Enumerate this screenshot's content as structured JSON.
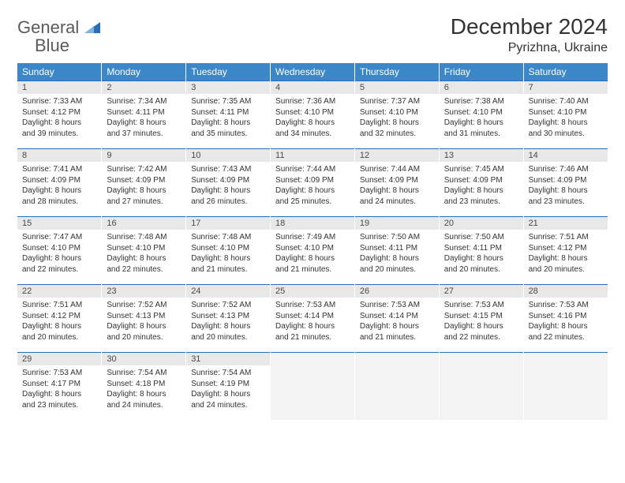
{
  "brand": {
    "name_gray": "General",
    "name_blue": "Blue"
  },
  "title": "December 2024",
  "location": "Pyrizhna, Ukraine",
  "colors": {
    "header_bg": "#3b87c8",
    "header_text": "#ffffff",
    "daynum_bg": "#e8e8e8",
    "row_border": "#2a6db3",
    "empty_bg": "#f3f3f3",
    "text": "#333333",
    "logo_gray": "#5a5a5a",
    "logo_blue": "#2a6db3"
  },
  "daysOfWeek": [
    "Sunday",
    "Monday",
    "Tuesday",
    "Wednesday",
    "Thursday",
    "Friday",
    "Saturday"
  ],
  "weeks": [
    [
      {
        "num": "1",
        "sunrise": "Sunrise: 7:33 AM",
        "sunset": "Sunset: 4:12 PM",
        "daylight": "Daylight: 8 hours and 39 minutes."
      },
      {
        "num": "2",
        "sunrise": "Sunrise: 7:34 AM",
        "sunset": "Sunset: 4:11 PM",
        "daylight": "Daylight: 8 hours and 37 minutes."
      },
      {
        "num": "3",
        "sunrise": "Sunrise: 7:35 AM",
        "sunset": "Sunset: 4:11 PM",
        "daylight": "Daylight: 8 hours and 35 minutes."
      },
      {
        "num": "4",
        "sunrise": "Sunrise: 7:36 AM",
        "sunset": "Sunset: 4:10 PM",
        "daylight": "Daylight: 8 hours and 34 minutes."
      },
      {
        "num": "5",
        "sunrise": "Sunrise: 7:37 AM",
        "sunset": "Sunset: 4:10 PM",
        "daylight": "Daylight: 8 hours and 32 minutes."
      },
      {
        "num": "6",
        "sunrise": "Sunrise: 7:38 AM",
        "sunset": "Sunset: 4:10 PM",
        "daylight": "Daylight: 8 hours and 31 minutes."
      },
      {
        "num": "7",
        "sunrise": "Sunrise: 7:40 AM",
        "sunset": "Sunset: 4:10 PM",
        "daylight": "Daylight: 8 hours and 30 minutes."
      }
    ],
    [
      {
        "num": "8",
        "sunrise": "Sunrise: 7:41 AM",
        "sunset": "Sunset: 4:09 PM",
        "daylight": "Daylight: 8 hours and 28 minutes."
      },
      {
        "num": "9",
        "sunrise": "Sunrise: 7:42 AM",
        "sunset": "Sunset: 4:09 PM",
        "daylight": "Daylight: 8 hours and 27 minutes."
      },
      {
        "num": "10",
        "sunrise": "Sunrise: 7:43 AM",
        "sunset": "Sunset: 4:09 PM",
        "daylight": "Daylight: 8 hours and 26 minutes."
      },
      {
        "num": "11",
        "sunrise": "Sunrise: 7:44 AM",
        "sunset": "Sunset: 4:09 PM",
        "daylight": "Daylight: 8 hours and 25 minutes."
      },
      {
        "num": "12",
        "sunrise": "Sunrise: 7:44 AM",
        "sunset": "Sunset: 4:09 PM",
        "daylight": "Daylight: 8 hours and 24 minutes."
      },
      {
        "num": "13",
        "sunrise": "Sunrise: 7:45 AM",
        "sunset": "Sunset: 4:09 PM",
        "daylight": "Daylight: 8 hours and 23 minutes."
      },
      {
        "num": "14",
        "sunrise": "Sunrise: 7:46 AM",
        "sunset": "Sunset: 4:09 PM",
        "daylight": "Daylight: 8 hours and 23 minutes."
      }
    ],
    [
      {
        "num": "15",
        "sunrise": "Sunrise: 7:47 AM",
        "sunset": "Sunset: 4:10 PM",
        "daylight": "Daylight: 8 hours and 22 minutes."
      },
      {
        "num": "16",
        "sunrise": "Sunrise: 7:48 AM",
        "sunset": "Sunset: 4:10 PM",
        "daylight": "Daylight: 8 hours and 22 minutes."
      },
      {
        "num": "17",
        "sunrise": "Sunrise: 7:48 AM",
        "sunset": "Sunset: 4:10 PM",
        "daylight": "Daylight: 8 hours and 21 minutes."
      },
      {
        "num": "18",
        "sunrise": "Sunrise: 7:49 AM",
        "sunset": "Sunset: 4:10 PM",
        "daylight": "Daylight: 8 hours and 21 minutes."
      },
      {
        "num": "19",
        "sunrise": "Sunrise: 7:50 AM",
        "sunset": "Sunset: 4:11 PM",
        "daylight": "Daylight: 8 hours and 20 minutes."
      },
      {
        "num": "20",
        "sunrise": "Sunrise: 7:50 AM",
        "sunset": "Sunset: 4:11 PM",
        "daylight": "Daylight: 8 hours and 20 minutes."
      },
      {
        "num": "21",
        "sunrise": "Sunrise: 7:51 AM",
        "sunset": "Sunset: 4:12 PM",
        "daylight": "Daylight: 8 hours and 20 minutes."
      }
    ],
    [
      {
        "num": "22",
        "sunrise": "Sunrise: 7:51 AM",
        "sunset": "Sunset: 4:12 PM",
        "daylight": "Daylight: 8 hours and 20 minutes."
      },
      {
        "num": "23",
        "sunrise": "Sunrise: 7:52 AM",
        "sunset": "Sunset: 4:13 PM",
        "daylight": "Daylight: 8 hours and 20 minutes."
      },
      {
        "num": "24",
        "sunrise": "Sunrise: 7:52 AM",
        "sunset": "Sunset: 4:13 PM",
        "daylight": "Daylight: 8 hours and 20 minutes."
      },
      {
        "num": "25",
        "sunrise": "Sunrise: 7:53 AM",
        "sunset": "Sunset: 4:14 PM",
        "daylight": "Daylight: 8 hours and 21 minutes."
      },
      {
        "num": "26",
        "sunrise": "Sunrise: 7:53 AM",
        "sunset": "Sunset: 4:14 PM",
        "daylight": "Daylight: 8 hours and 21 minutes."
      },
      {
        "num": "27",
        "sunrise": "Sunrise: 7:53 AM",
        "sunset": "Sunset: 4:15 PM",
        "daylight": "Daylight: 8 hours and 22 minutes."
      },
      {
        "num": "28",
        "sunrise": "Sunrise: 7:53 AM",
        "sunset": "Sunset: 4:16 PM",
        "daylight": "Daylight: 8 hours and 22 minutes."
      }
    ],
    [
      {
        "num": "29",
        "sunrise": "Sunrise: 7:53 AM",
        "sunset": "Sunset: 4:17 PM",
        "daylight": "Daylight: 8 hours and 23 minutes."
      },
      {
        "num": "30",
        "sunrise": "Sunrise: 7:54 AM",
        "sunset": "Sunset: 4:18 PM",
        "daylight": "Daylight: 8 hours and 24 minutes."
      },
      {
        "num": "31",
        "sunrise": "Sunrise: 7:54 AM",
        "sunset": "Sunset: 4:19 PM",
        "daylight": "Daylight: 8 hours and 24 minutes."
      },
      null,
      null,
      null,
      null
    ]
  ]
}
